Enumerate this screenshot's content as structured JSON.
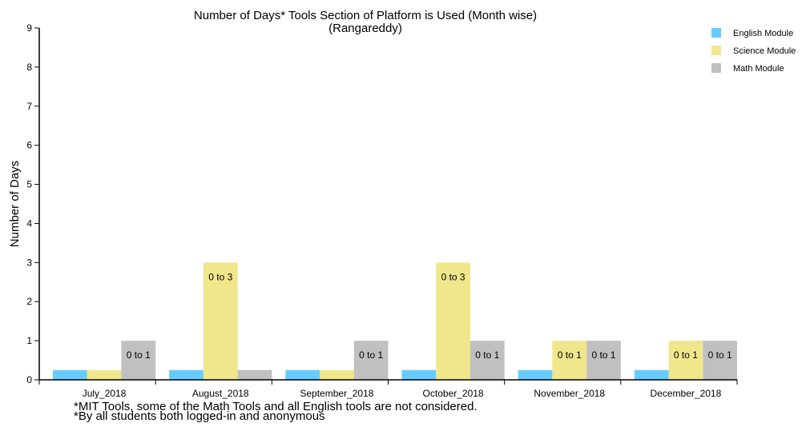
{
  "chart_data": {
    "type": "bar",
    "title": "Number of Days* Tools Section of Platform is Used (Month wise)",
    "subtitle": "(Rangareddy)",
    "ylabel": "Number of Days",
    "xlabel": "",
    "ylim": [
      0,
      9
    ],
    "yticks": [
      0,
      1,
      2,
      3,
      4,
      5,
      6,
      7,
      8,
      9
    ],
    "categories": [
      "July_2018",
      "August_2018",
      "September_2018",
      "October_2018",
      "November_2018",
      "December_2018"
    ],
    "series": [
      {
        "name": "English Module",
        "color": "#66ccff",
        "values": [
          0.25,
          0.25,
          0.25,
          0.25,
          0.25,
          0.25
        ],
        "labels": [
          "",
          "",
          "",
          "",
          "",
          ""
        ]
      },
      {
        "name": "Science Module",
        "color": "#f0e68c",
        "values": [
          0.25,
          3,
          0.25,
          3,
          1,
          1
        ],
        "labels": [
          "",
          "0 to 3",
          "",
          "0 to 3",
          "0 to 1",
          "0 to 1"
        ]
      },
      {
        "name": "Math Module",
        "color": "#c0c0c0",
        "values": [
          1,
          0.25,
          1,
          1,
          1,
          1
        ],
        "labels": [
          "0 to 1",
          "",
          "0 to 1",
          "0 to 1",
          "0 to 1",
          "0 to 1"
        ]
      }
    ],
    "legend_position": "top-right",
    "grid": false
  },
  "footnotes": [
    "*MIT Tools, some of the Math Tools and all English tools are not considered.",
    "*By all students both logged-in and anonymous"
  ]
}
